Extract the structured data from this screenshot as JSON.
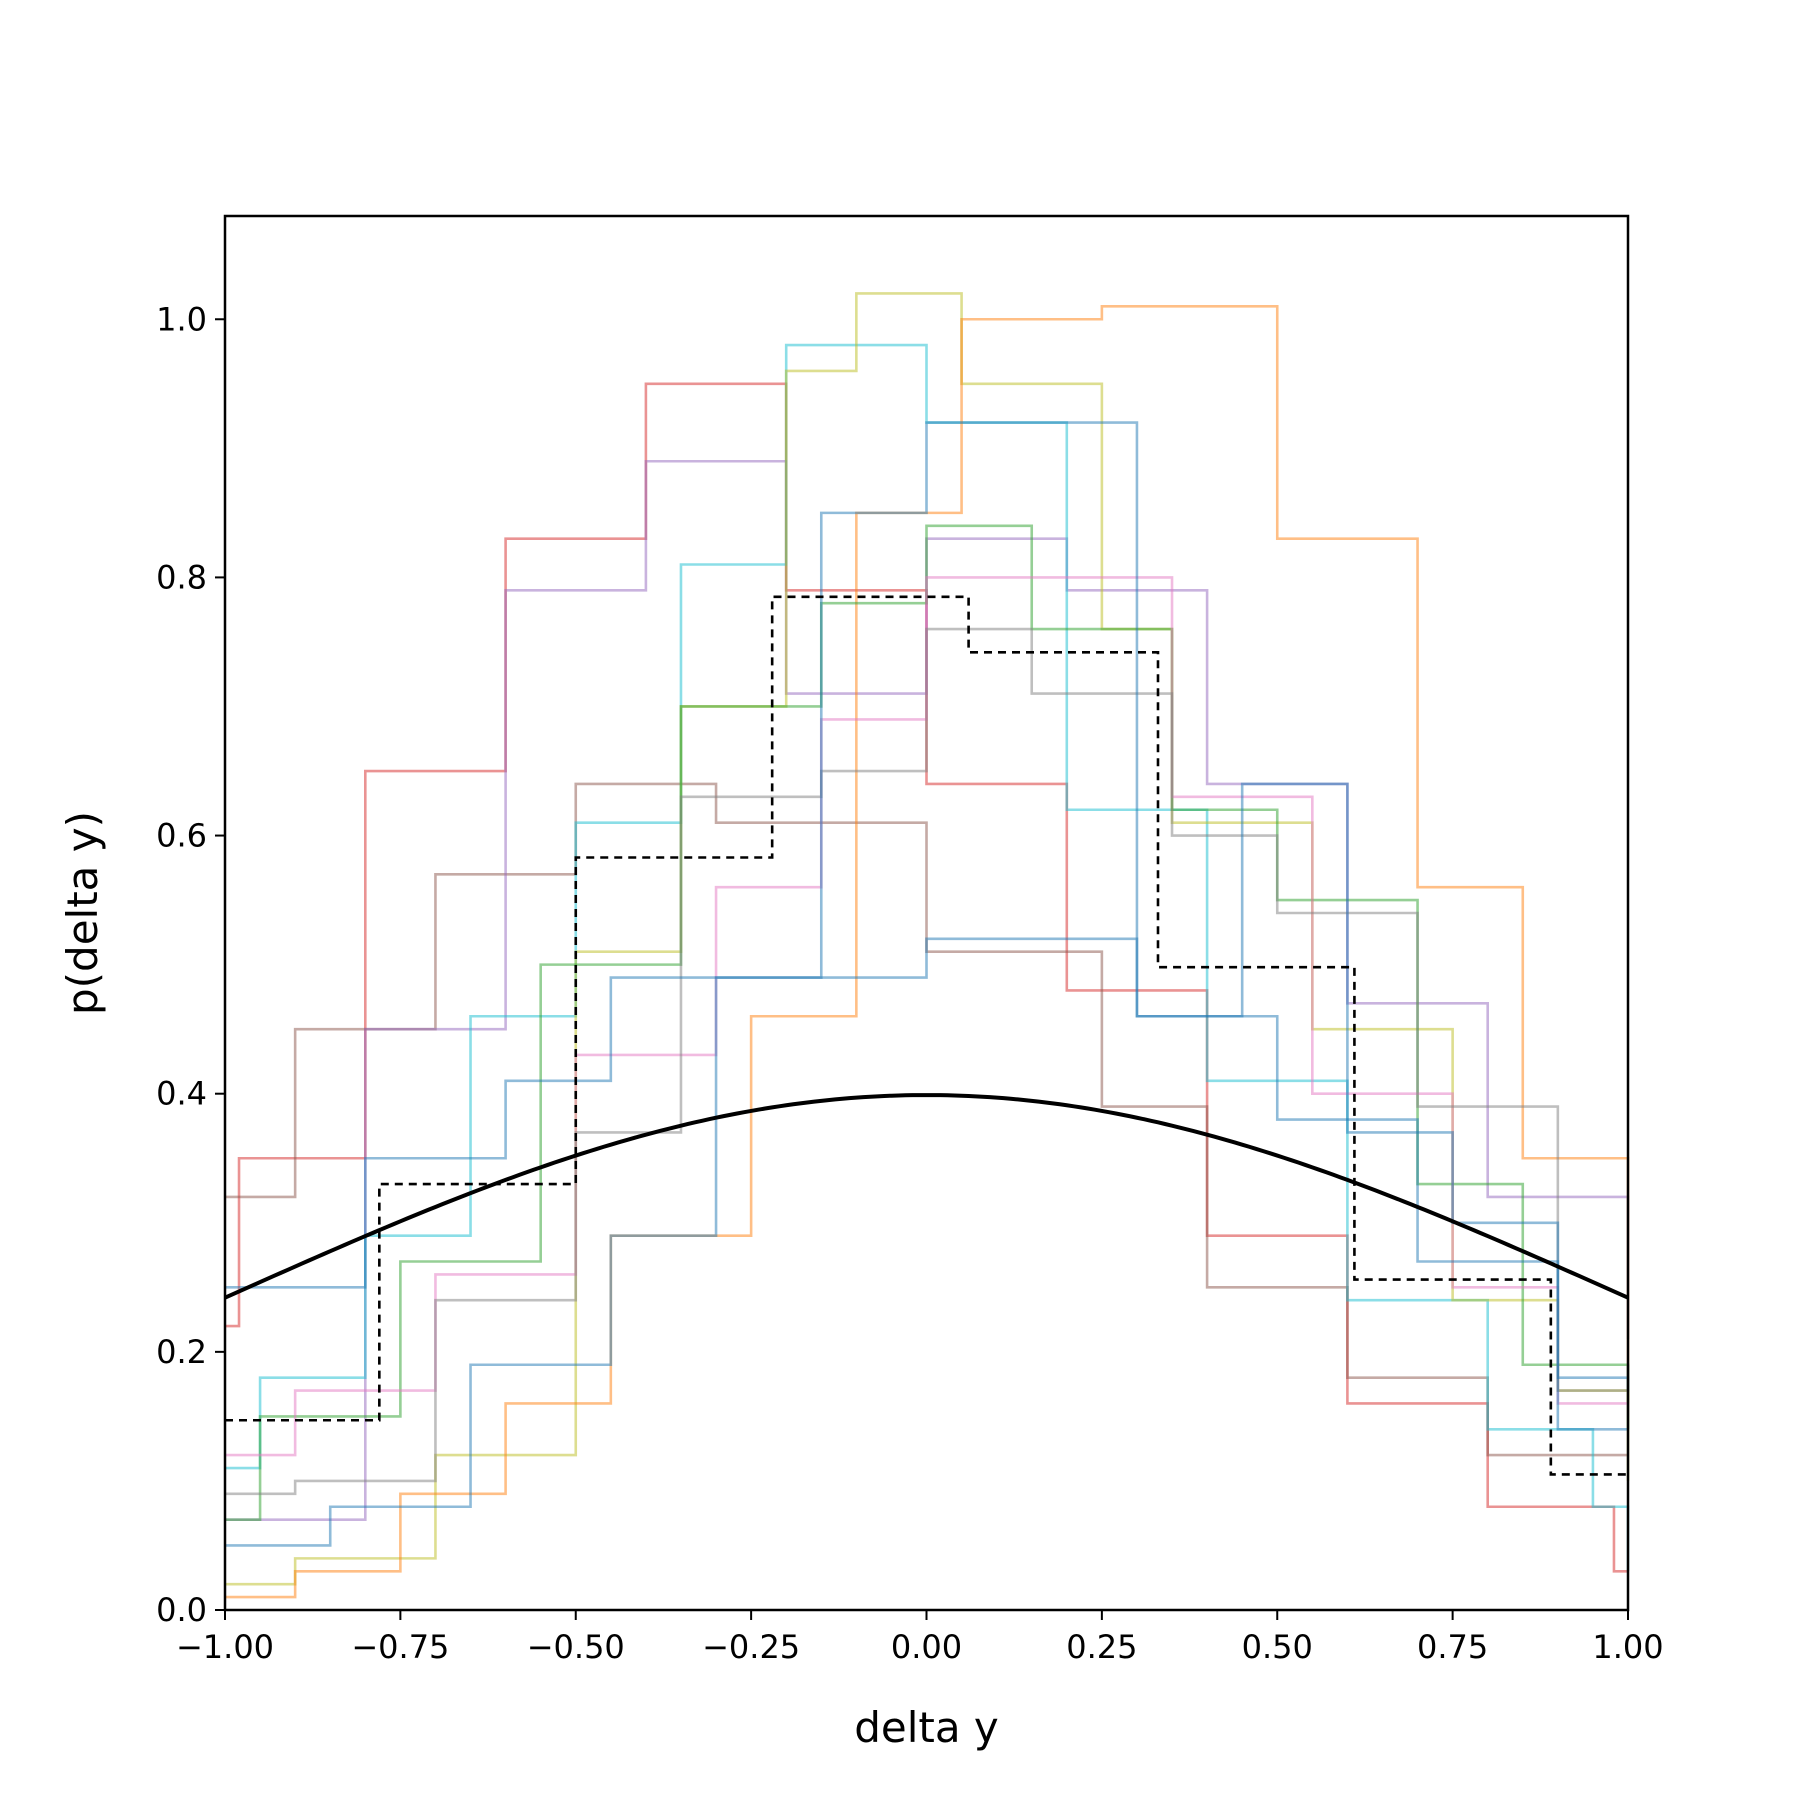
{
  "chart_data": {
    "type": "line",
    "title": "",
    "xlabel": "delta y",
    "ylabel": "p(delta y)",
    "xlim": [
      -1.0,
      1.0
    ],
    "ylim": [
      0.0,
      1.08
    ],
    "grid": false,
    "legend": "none",
    "xticks": [
      "−1.00",
      "−0.75",
      "−0.50",
      "−0.25",
      "0.00",
      "0.25",
      "0.50",
      "0.75",
      "1.00"
    ],
    "xtick_values": [
      -1.0,
      -0.75,
      -0.5,
      -0.25,
      0.0,
      0.25,
      0.5,
      0.75,
      1.0
    ],
    "yticks": [
      "0.0",
      "0.2",
      "0.4",
      "0.6",
      "0.8",
      "1.0"
    ],
    "ytick_values": [
      0.0,
      0.2,
      0.4,
      0.6,
      0.8,
      1.0
    ],
    "series": [
      {
        "kind": "step",
        "color": "#d62728",
        "edges": [
          -1.0,
          -0.98,
          -0.8,
          -0.6,
          -0.4,
          -0.2,
          0.0,
          0.2,
          0.4,
          0.6,
          0.8,
          0.98,
          1.0
        ],
        "values": [
          0.22,
          0.35,
          0.65,
          0.83,
          0.95,
          0.79,
          0.64,
          0.48,
          0.29,
          0.16,
          0.08,
          0.03
        ]
      },
      {
        "kind": "step",
        "color": "#8c564b",
        "edges": [
          -1.0,
          -0.95,
          -0.9,
          -0.7,
          -0.5,
          -0.3,
          -0.1,
          0.0,
          0.25,
          0.4,
          0.6,
          0.8,
          1.0
        ],
        "values": [
          0.32,
          0.32,
          0.45,
          0.57,
          0.64,
          0.61,
          0.61,
          0.51,
          0.39,
          0.25,
          0.18,
          0.12
        ]
      },
      {
        "kind": "step",
        "color": "#9467bd",
        "edges": [
          -1.0,
          -0.8,
          -0.6,
          -0.4,
          -0.2,
          0.0,
          0.2,
          0.4,
          0.6,
          0.8,
          1.0
        ],
        "values": [
          0.07,
          0.45,
          0.79,
          0.89,
          0.71,
          0.83,
          0.79,
          0.64,
          0.47,
          0.32,
          0.21
        ]
      },
      {
        "kind": "step",
        "color": "#17becf",
        "edges": [
          -1.0,
          -0.95,
          -0.8,
          -0.65,
          -0.5,
          -0.35,
          -0.2,
          0.0,
          0.2,
          0.4,
          0.6,
          0.8,
          0.95,
          1.0
        ],
        "values": [
          0.11,
          0.18,
          0.29,
          0.46,
          0.61,
          0.81,
          0.98,
          0.92,
          0.62,
          0.41,
          0.24,
          0.14,
          0.08,
          0.03
        ]
      },
      {
        "kind": "step",
        "color": "#bcbd22",
        "edges": [
          -1.0,
          -0.9,
          -0.7,
          -0.5,
          -0.35,
          -0.2,
          -0.1,
          0.05,
          0.25,
          0.35,
          0.55,
          0.75,
          0.9,
          1.0
        ],
        "values": [
          0.02,
          0.04,
          0.12,
          0.51,
          0.7,
          0.96,
          1.02,
          0.95,
          0.76,
          0.61,
          0.45,
          0.24,
          0.17,
          0.1
        ]
      },
      {
        "kind": "step",
        "color": "#ff7f0e",
        "edges": [
          -1.0,
          -0.9,
          -0.75,
          -0.6,
          -0.45,
          -0.25,
          -0.1,
          0.05,
          0.25,
          0.5,
          0.7,
          0.85,
          1.0
        ],
        "values": [
          0.01,
          0.03,
          0.09,
          0.16,
          0.29,
          0.46,
          0.85,
          1.0,
          1.01,
          0.83,
          0.56,
          0.35,
          0.16
        ]
      },
      {
        "kind": "step",
        "color": "#2ca02c",
        "edges": [
          -1.0,
          -0.95,
          -0.75,
          -0.55,
          -0.35,
          -0.15,
          0.0,
          0.15,
          0.35,
          0.5,
          0.7,
          0.85,
          1.0
        ],
        "values": [
          0.07,
          0.15,
          0.27,
          0.5,
          0.7,
          0.78,
          0.84,
          0.76,
          0.62,
          0.55,
          0.33,
          0.19,
          0.14
        ]
      },
      {
        "kind": "step",
        "color": "#e377c2",
        "edges": [
          -1.0,
          -0.9,
          -0.7,
          -0.5,
          -0.3,
          -0.15,
          0.0,
          0.2,
          0.35,
          0.55,
          0.75,
          0.9,
          1.0
        ],
        "values": [
          0.12,
          0.17,
          0.26,
          0.43,
          0.56,
          0.69,
          0.8,
          0.8,
          0.63,
          0.4,
          0.25,
          0.16,
          0.15
        ]
      },
      {
        "kind": "step",
        "color": "#7f7f7f",
        "edges": [
          -1.0,
          -0.9,
          -0.7,
          -0.5,
          -0.35,
          -0.15,
          0.0,
          0.15,
          0.35,
          0.5,
          0.7,
          0.9,
          1.0
        ],
        "values": [
          0.09,
          0.1,
          0.24,
          0.37,
          0.63,
          0.65,
          0.76,
          0.71,
          0.6,
          0.54,
          0.39,
          0.17,
          0.19
        ]
      },
      {
        "kind": "step",
        "color": "#1f77b4",
        "edges": [
          -1.0,
          -0.85,
          -0.65,
          -0.45,
          -0.3,
          -0.15,
          0.0,
          0.15,
          0.3,
          0.45,
          0.6,
          0.75,
          0.9,
          1.0
        ],
        "values": [
          0.05,
          0.08,
          0.19,
          0.29,
          0.49,
          0.85,
          0.92,
          0.92,
          0.46,
          0.64,
          0.37,
          0.3,
          0.14,
          0.14
        ]
      },
      {
        "kind": "step",
        "color": "#1f77b4",
        "edges": [
          -1.0,
          -0.8,
          -0.6,
          -0.45,
          -0.3,
          -0.15,
          0.0,
          0.15,
          0.3,
          0.5,
          0.7,
          0.9,
          1.0
        ],
        "values": [
          0.25,
          0.35,
          0.41,
          0.49,
          0.49,
          0.49,
          0.52,
          0.52,
          0.46,
          0.38,
          0.27,
          0.18,
          0.17
        ]
      },
      {
        "kind": "step",
        "color": "#000000",
        "dashed": true,
        "edges": [
          -1.0,
          -0.78,
          -0.5,
          -0.22,
          0.06,
          0.33,
          0.61,
          0.89,
          1.0
        ],
        "values": [
          0.147,
          0.33,
          0.583,
          0.785,
          0.742,
          0.498,
          0.256,
          0.105
        ]
      },
      {
        "kind": "curve",
        "color": "#000000",
        "function": "normal_pdf",
        "mean": 0.0,
        "sd": 1.0
      }
    ]
  }
}
